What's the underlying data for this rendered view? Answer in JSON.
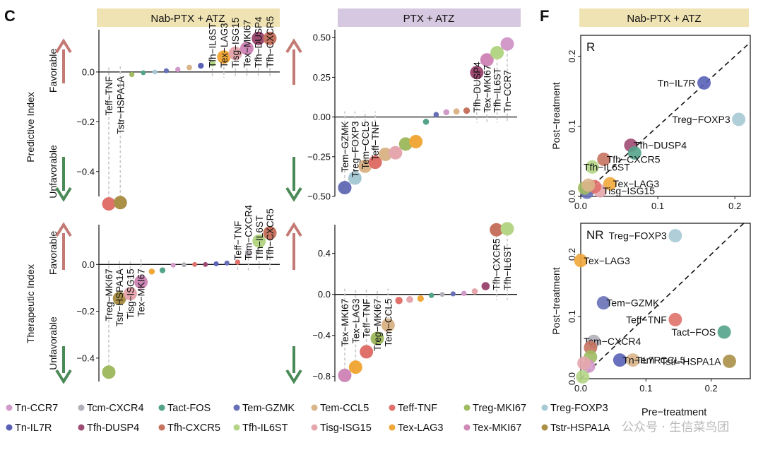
{
  "panel_letters": {
    "c": "C",
    "f": "F"
  },
  "headers": {
    "nab": "Nab-PTX + ATZ",
    "ptx": "PTX + ATZ",
    "f": "Nab-PTX + ATZ"
  },
  "header_colors": {
    "nab": "#efe3b4",
    "ptx": "#d6c8e0"
  },
  "row_labels": {
    "predictive": "Predictive Index",
    "therapeutic": "Therapeutic Index",
    "favorable": "Favorable",
    "unfavorable": "Unfavorable"
  },
  "arrow_colors": {
    "up": "#c47a74",
    "down": "#4a8a56"
  },
  "colors": {
    "Tn-CCR7": "#d29ac9",
    "Tcm-CXCR4": "#b3aeb8",
    "Tact-FOS": "#54a38b",
    "Tem-GZMK": "#6770b6",
    "Tem-CCL5": "#dab58a",
    "Teff-TNF": "#df716a",
    "Treg-MKI67": "#a0bb62",
    "Treg-FOXP3": "#a7c9d4",
    "Tn-IL7R": "#5960b6",
    "Tfh-DUSP4": "#9e4b73",
    "Tfh-CXCR5": "#c6735f",
    "Tfh-IL6ST": "#b4d585",
    "Tisg-ISG15": "#e5a7ad",
    "Tex-LAG3": "#f1a83a",
    "Tex-MKI67": "#cf88b7",
    "Tstr-HSPA1A": "#aa9047"
  },
  "chart_data": [
    {
      "id": "pred_nab",
      "type": "lollipop",
      "title": "Nab-PTX + ATZ",
      "ylabel": "Predictive Index",
      "ylim": [
        -0.5,
        0.17
      ],
      "yticks": [
        0.0,
        -0.2,
        -0.4
      ],
      "ytick_labels": [
        "0.0",
        "−0.2",
        "−0.4"
      ],
      "points": [
        {
          "name": "Teff-TNF",
          "value": -0.53,
          "label": "Teff−TNF"
        },
        {
          "name": "Tstr-HSPA1A",
          "value": -0.525,
          "label": "Tstr−HSPA1A"
        },
        {
          "name": "Treg-MKI67",
          "value": -0.01
        },
        {
          "name": "Tact-FOS",
          "value": -0.003
        },
        {
          "name": "Treg-FOXP3",
          "value": 0.0
        },
        {
          "name": "Tem-GZMK",
          "value": 0.005
        },
        {
          "name": "Tn-CCR7",
          "value": 0.01
        },
        {
          "name": "Tem-CCL5",
          "value": 0.018
        },
        {
          "name": "Tn-IL7R",
          "value": 0.025
        },
        {
          "name": "Tfh-IL6ST",
          "value": 0.035,
          "label": "Tfh−IL6ST"
        },
        {
          "name": "Tex-LAG3",
          "value": 0.06,
          "label": "Tex−LAG3"
        },
        {
          "name": "Tisg-ISG15",
          "value": 0.075,
          "label": "Tisg−ISG15"
        },
        {
          "name": "Tex-MKI67",
          "value": 0.095,
          "label": "Tex−MKI67"
        },
        {
          "name": "Tfh-DUSP4",
          "value": 0.135,
          "label": "Tfh−DUSP4"
        },
        {
          "name": "Tfh-CXCR5",
          "value": 0.135,
          "label": "Tfh−CXCR5"
        }
      ]
    },
    {
      "id": "pred_ptx",
      "type": "lollipop",
      "title": "PTX + ATZ",
      "ylabel": "Predictive Index",
      "ylim": [
        -0.5,
        0.55
      ],
      "yticks": [
        0.5,
        0.25,
        0.0,
        -0.25,
        -0.5
      ],
      "ytick_labels": [
        "0.50",
        "0.25",
        "0.00",
        "−0.25",
        "−0.50"
      ],
      "points": [
        {
          "name": "Tem-GZMK",
          "value": -0.445,
          "label": "Tem−GZMK"
        },
        {
          "name": "Treg-FOXP3",
          "value": -0.385,
          "label": "Treg−FOXP3"
        },
        {
          "name": "Tem-CCL5",
          "value": -0.31,
          "label": "Tem−CCL5"
        },
        {
          "name": "Teff-TNF",
          "value": -0.285,
          "label": "Teff−TNF"
        },
        {
          "name": "Tem-CCL5",
          "value": -0.235
        },
        {
          "name": "Tisg-ISG15",
          "value": -0.225
        },
        {
          "name": "Treg-MKI67",
          "value": -0.17
        },
        {
          "name": "Tex-LAG3",
          "value": -0.155
        },
        {
          "name": "Tact-FOS",
          "value": -0.03
        },
        {
          "name": "Tem-GZMK",
          "value": 0.015
        },
        {
          "name": "Tn-CCR7",
          "value": 0.03
        },
        {
          "name": "Tem-CCL5",
          "value": 0.035
        },
        {
          "name": "Tfh-CXCR5",
          "value": 0.04
        },
        {
          "name": "Tfh-DUSP4",
          "value": 0.28,
          "label": "Tfh−DUSP4"
        },
        {
          "name": "Tex-MKI67",
          "value": 0.36,
          "label": "Tex−MKI67"
        },
        {
          "name": "Tfh-IL6ST",
          "value": 0.405,
          "label": "Tfh−IL6ST"
        },
        {
          "name": "Tn-CCR7",
          "value": 0.46,
          "label": "Tn−CCR7"
        }
      ]
    },
    {
      "id": "ther_nab",
      "type": "lollipop",
      "title": "Nab-PTX + ATZ",
      "ylabel": "Therapeutic Index",
      "ylim": [
        -0.5,
        0.17
      ],
      "yticks": [
        0.0,
        -0.2,
        -0.4
      ],
      "ytick_labels": [
        "0.0",
        "−0.2",
        "−0.4"
      ],
      "points": [
        {
          "name": "Treg-MKI67",
          "value": -0.46,
          "label": "Treg−MKI67"
        },
        {
          "name": "Tstr-HSPA1A",
          "value": -0.145,
          "label": "Tstr−HSPA1A"
        },
        {
          "name": "Tisg-ISG15",
          "value": -0.125,
          "label": "Tisg−ISG15"
        },
        {
          "name": "Tex-MKI67",
          "value": -0.075,
          "label": "Tex−MKI67"
        },
        {
          "name": "Tex-LAG3",
          "value": -0.03
        },
        {
          "name": "Tact-FOS",
          "value": -0.025
        },
        {
          "name": "Tn-CCR7",
          "value": -0.003
        },
        {
          "name": "Tcm-CXCR4",
          "value": -0.001
        },
        {
          "name": "Teff-TNF",
          "value": 0.0
        },
        {
          "name": "Tfh-DUSP4",
          "value": 0.0
        },
        {
          "name": "Tn-IL7R",
          "value": 0.003
        },
        {
          "name": "Tem-GZMK",
          "value": 0.006
        },
        {
          "name": "Teff-TNF",
          "value": 0.01,
          "label": "Teff−TNF"
        },
        {
          "name": "Tcm-CXCR4",
          "value": 0.05,
          "label": "Tcm−CXCR4"
        },
        {
          "name": "Tfh-IL6ST",
          "value": 0.1,
          "label": "Tfh−IL6ST"
        },
        {
          "name": "Tfh-CXCR5",
          "value": 0.135,
          "label": "Tfh−CXCR5"
        }
      ]
    },
    {
      "id": "ther_ptx",
      "type": "lollipop",
      "title": "PTX + ATZ",
      "ylabel": "Therapeutic Index",
      "ylim": [
        -0.85,
        0.68
      ],
      "yticks": [
        0.4,
        0.0,
        -0.4,
        -0.8
      ],
      "ytick_labels": [
        "0.4",
        "0.0",
        "−0.4",
        "−0.8"
      ],
      "points": [
        {
          "name": "Tex-MKI67",
          "value": -0.79,
          "label": "Tex−MKI67"
        },
        {
          "name": "Tex-LAG3",
          "value": -0.71,
          "label": "Tex−LAG3"
        },
        {
          "name": "Teff-TNF",
          "value": -0.56,
          "label": "Teff−TNF"
        },
        {
          "name": "Treg-MKI67",
          "value": -0.43,
          "label": "Treg−MKI67"
        },
        {
          "name": "Tem-CCL5",
          "value": -0.3,
          "label": "Tem−CCL5"
        },
        {
          "name": "Teff-TNF",
          "value": -0.06
        },
        {
          "name": "Tisg-ISG15",
          "value": -0.05
        },
        {
          "name": "Tex-LAG3",
          "value": -0.04
        },
        {
          "name": "Tact-FOS",
          "value": -0.01
        },
        {
          "name": "Tcm-CXCR4",
          "value": 0.0
        },
        {
          "name": "Tem-GZMK",
          "value": 0.005
        },
        {
          "name": "Tn-CCR7",
          "value": 0.01
        },
        {
          "name": "Tisg-ISG15",
          "value": 0.03
        },
        {
          "name": "Tfh-DUSP4",
          "value": 0.08
        },
        {
          "name": "Tfh-CXCR5",
          "value": 0.63,
          "label": "Tfh−CXCR5"
        },
        {
          "name": "Tfh-IL6ST",
          "value": 0.64,
          "label": "Tfh−IL6ST"
        }
      ]
    },
    {
      "id": "scatter_R",
      "type": "scatter",
      "tag": "R",
      "xlabel": "",
      "ylabel": "Post−treatment",
      "xlim": [
        0.0,
        0.22
      ],
      "ylim": [
        0.0,
        0.23
      ],
      "xticks": [
        0.0,
        0.1,
        0.2
      ],
      "xtick_labels": [
        "0.0",
        "0.1",
        "0.2"
      ],
      "yticks": [
        0.0,
        0.1,
        0.2
      ],
      "ytick_labels": [
        "0.0",
        "0.1",
        "0.2"
      ],
      "points": [
        {
          "name": "Tn-IL7R",
          "x": 0.16,
          "y": 0.162,
          "label": "Tn−IL7R"
        },
        {
          "name": "Treg-FOXP3",
          "x": 0.205,
          "y": 0.11,
          "label": "Treg−FOXP3"
        },
        {
          "name": "Tfh-DUSP4",
          "x": 0.065,
          "y": 0.073,
          "label": "Tfh−DUSP4"
        },
        {
          "name": "Tact-FOS",
          "x": 0.07,
          "y": 0.062
        },
        {
          "name": "Tfh-CXCR5",
          "x": 0.03,
          "y": 0.053,
          "label": "Tfh−CXCR5"
        },
        {
          "name": "Tfh-IL6ST",
          "x": 0.015,
          "y": 0.042,
          "label": "Tfh−IL6ST"
        },
        {
          "name": "Tex-LAG3",
          "x": 0.038,
          "y": 0.018,
          "label": "Tex−LAG3"
        },
        {
          "name": "Tisg-ISG15",
          "x": 0.025,
          "y": 0.008,
          "label": "Tisg−ISG15"
        },
        {
          "name": "Tn-CCR7",
          "x": 0.012,
          "y": 0.012
        },
        {
          "name": "Tem-GZMK",
          "x": 0.008,
          "y": 0.006
        },
        {
          "name": "Teff-TNF",
          "x": 0.018,
          "y": 0.014
        },
        {
          "name": "Treg-MKI67",
          "x": 0.005,
          "y": 0.012
        },
        {
          "name": "Tem-CCL5",
          "x": 0.01,
          "y": 0.016
        }
      ]
    },
    {
      "id": "scatter_NR",
      "type": "scatter",
      "tag": "NR",
      "xlabel": "Pre−treatment",
      "ylabel": "Post−treatment",
      "xlim": [
        0.0,
        0.26
      ],
      "ylim": [
        0.0,
        0.25
      ],
      "xticks": [
        0.0,
        0.1,
        0.2
      ],
      "xtick_labels": [
        "0.0",
        "0.1",
        "0.2"
      ],
      "yticks": [
        0.0,
        0.1,
        0.2
      ],
      "ytick_labels": [
        "0.0",
        "0.1",
        "0.2"
      ],
      "points": [
        {
          "name": "Treg-FOXP3",
          "x": 0.145,
          "y": 0.23,
          "label": "Treg−FOXP3"
        },
        {
          "name": "Tex-LAG3",
          "x": 0.0,
          "y": 0.19,
          "label": "Tex−LAG3"
        },
        {
          "name": "Tem-GZMK",
          "x": 0.035,
          "y": 0.122,
          "label": "Tem−GZMK"
        },
        {
          "name": "Teff-TNF",
          "x": 0.145,
          "y": 0.095,
          "label": "Teff−TNF"
        },
        {
          "name": "Tact-FOS",
          "x": 0.22,
          "y": 0.075,
          "label": "Tact−FOS"
        },
        {
          "name": "Tcm-CXCR4",
          "x": 0.02,
          "y": 0.06,
          "label": "Tcm−CXCR4"
        },
        {
          "name": "Tem-CCL5",
          "x": 0.08,
          "y": 0.03,
          "label": "Tem−CCL5"
        },
        {
          "name": "Tstr-HSPA1A",
          "x": 0.228,
          "y": 0.028,
          "label": "Tstr−HSPA1A"
        },
        {
          "name": "Tn-IL7R",
          "x": 0.06,
          "y": 0.03,
          "label": "Tn−IL7R"
        },
        {
          "name": "Tfh-CXCR5",
          "x": 0.015,
          "y": 0.05
        },
        {
          "name": "Treg-MKI67",
          "x": 0.015,
          "y": 0.035
        },
        {
          "name": "Tn-CCR7",
          "x": 0.012,
          "y": 0.02
        },
        {
          "name": "Tisg-ISG15",
          "x": 0.005,
          "y": 0.025
        },
        {
          "name": "Tfh-IL6ST",
          "x": 0.003,
          "y": 0.003
        }
      ]
    }
  ],
  "legend": [
    "Tn-CCR7",
    "Tcm-CXCR4",
    "Tact-FOS",
    "Tem-GZMK",
    "Tem-CCL5",
    "Teff-TNF",
    "Treg-MKI67",
    "Treg-FOXP3",
    "Tn-IL7R",
    "Tfh-DUSP4",
    "Tfh-CXCR5",
    "Tfh-IL6ST",
    "Tisg-ISG15",
    "Tex-LAG3",
    "Tex-MKI67",
    "Tstr-HSPA1A"
  ],
  "watermark": "公众号 · 生信菜鸟团"
}
